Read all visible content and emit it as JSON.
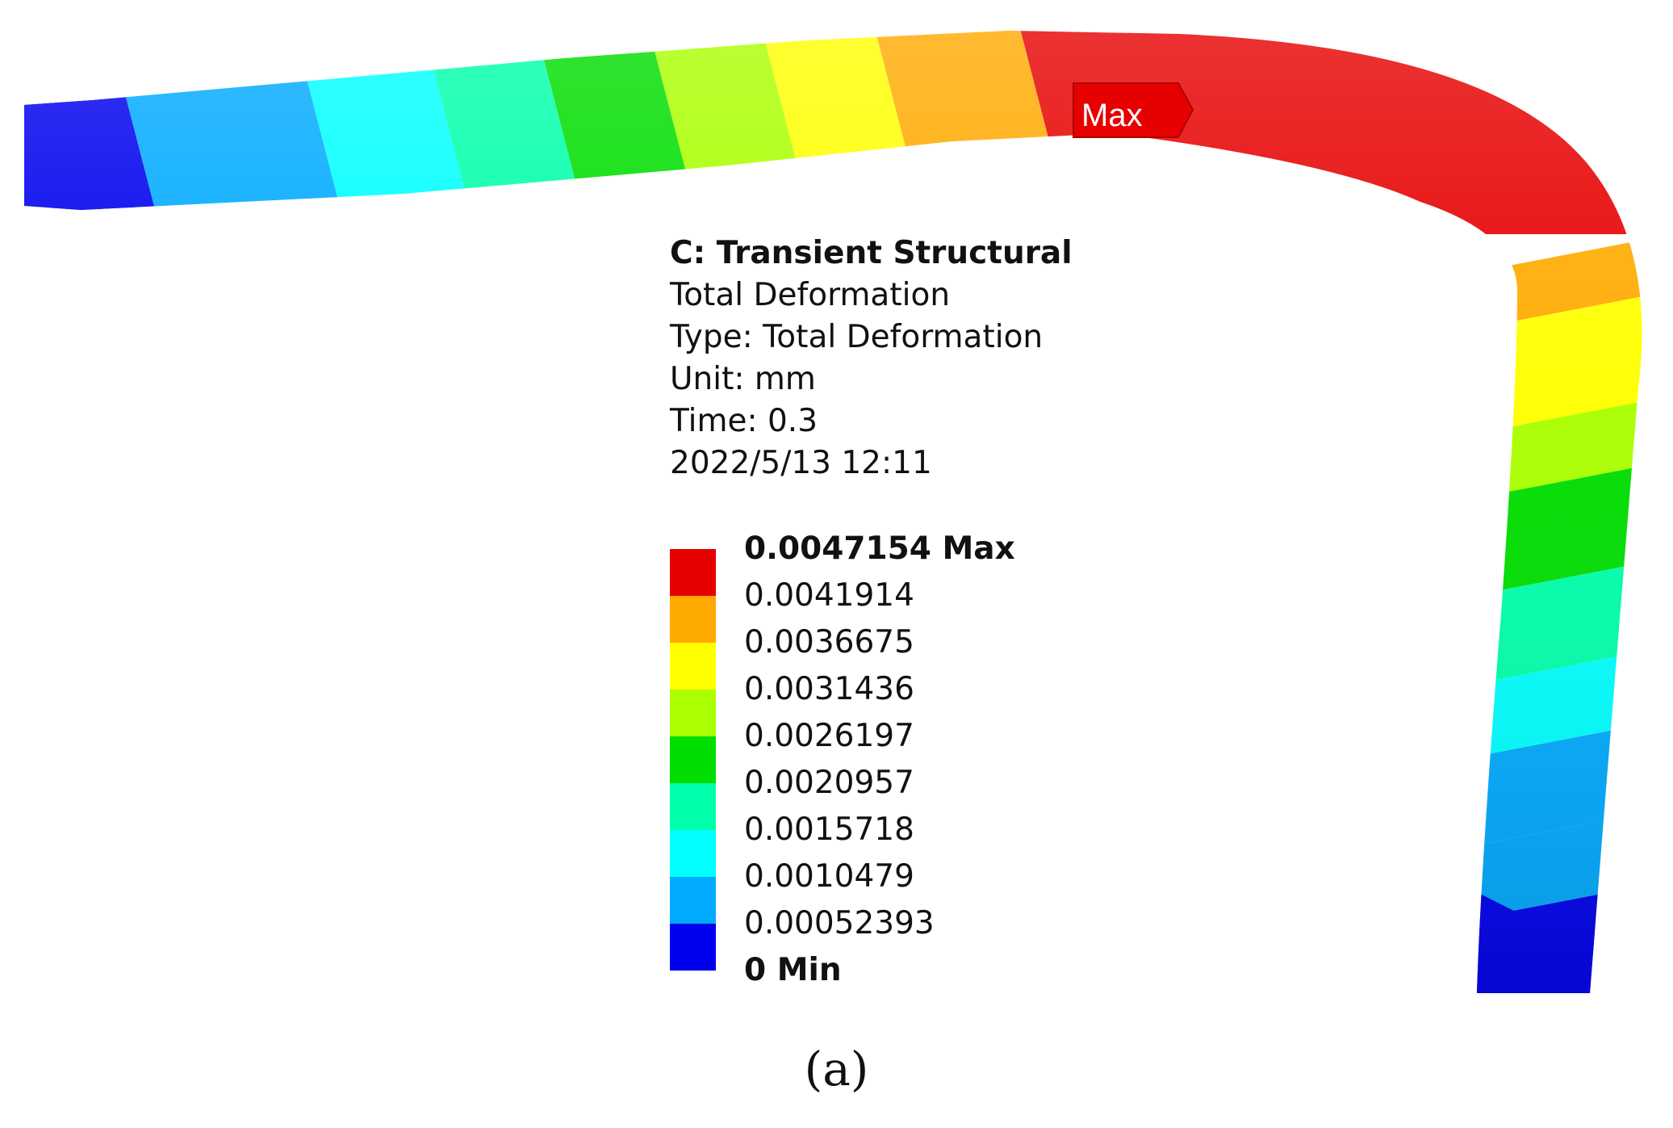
{
  "result": {
    "system": "C: Transient Structural",
    "name": "Total Deformation",
    "type": "Type: Total Deformation",
    "unit": "Unit: mm",
    "time": "Time: 0.3",
    "timestamp": "2022/5/13 12:11"
  },
  "probe": {
    "label": "Max"
  },
  "legend": {
    "labels": [
      {
        "text": "0.0047154 Max",
        "bold": true
      },
      {
        "text": "0.0041914"
      },
      {
        "text": "0.0036675"
      },
      {
        "text": "0.0031436"
      },
      {
        "text": "0.0026197"
      },
      {
        "text": "0.0020957"
      },
      {
        "text": "0.0015718"
      },
      {
        "text": "0.0010479"
      },
      {
        "text": "0.00052393"
      },
      {
        "text": "0 Min",
        "bold": true
      }
    ],
    "bands": [
      {
        "level": 9,
        "color": "#e60000"
      },
      {
        "level": 8,
        "color": "#ffaa00"
      },
      {
        "level": 7,
        "color": "#ffff00"
      },
      {
        "level": 6,
        "color": "#aaff00"
      },
      {
        "level": 5,
        "color": "#00dd00"
      },
      {
        "level": 4,
        "color": "#00ffaa"
      },
      {
        "level": 3,
        "color": "#00ffff"
      },
      {
        "level": 2,
        "color": "#00aaff"
      },
      {
        "level": 1,
        "color": "#0000ee"
      }
    ]
  },
  "caption": "(a)"
}
